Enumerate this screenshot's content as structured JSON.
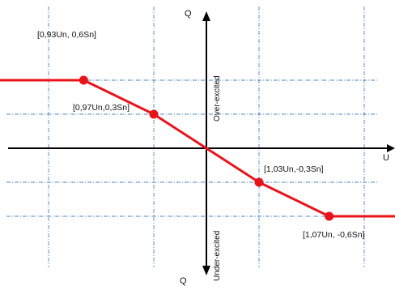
{
  "chart_data": {
    "type": "line",
    "xlabel": "U",
    "ylabel_top": "Q",
    "ylabel_bottom": "Q",
    "regions": {
      "upper": "Over-excited",
      "lower": "Under-excited"
    },
    "x_range": [
      0.88,
      1.12
    ],
    "y_range": [
      -0.72,
      0.72
    ],
    "grid": true,
    "series": [
      {
        "points": [
          {
            "x": 0.88,
            "y": 0.6
          },
          {
            "x": 0.93,
            "y": 0.6
          },
          {
            "x": 0.97,
            "y": 0.3
          },
          {
            "x": 1.0,
            "y": 0.0
          },
          {
            "x": 1.03,
            "y": -0.3
          },
          {
            "x": 1.07,
            "y": -0.6
          },
          {
            "x": 1.12,
            "y": -0.6
          }
        ]
      }
    ],
    "markers": [
      {
        "x": 0.93,
        "y": 0.6,
        "label": "[0,93Un, 0,6Sn]"
      },
      {
        "x": 0.97,
        "y": 0.3,
        "label": "[0,97Un,0,3Sn]"
      },
      {
        "x": 1.03,
        "y": -0.3,
        "label": "[1,03Un,-0,3Sn]"
      },
      {
        "x": 1.07,
        "y": -0.6,
        "label": "[1,07Un, -0,6Sn]"
      }
    ],
    "colors": {
      "curve": "#e8141a",
      "axis": "#000000",
      "grid": "#4a86c8"
    }
  }
}
